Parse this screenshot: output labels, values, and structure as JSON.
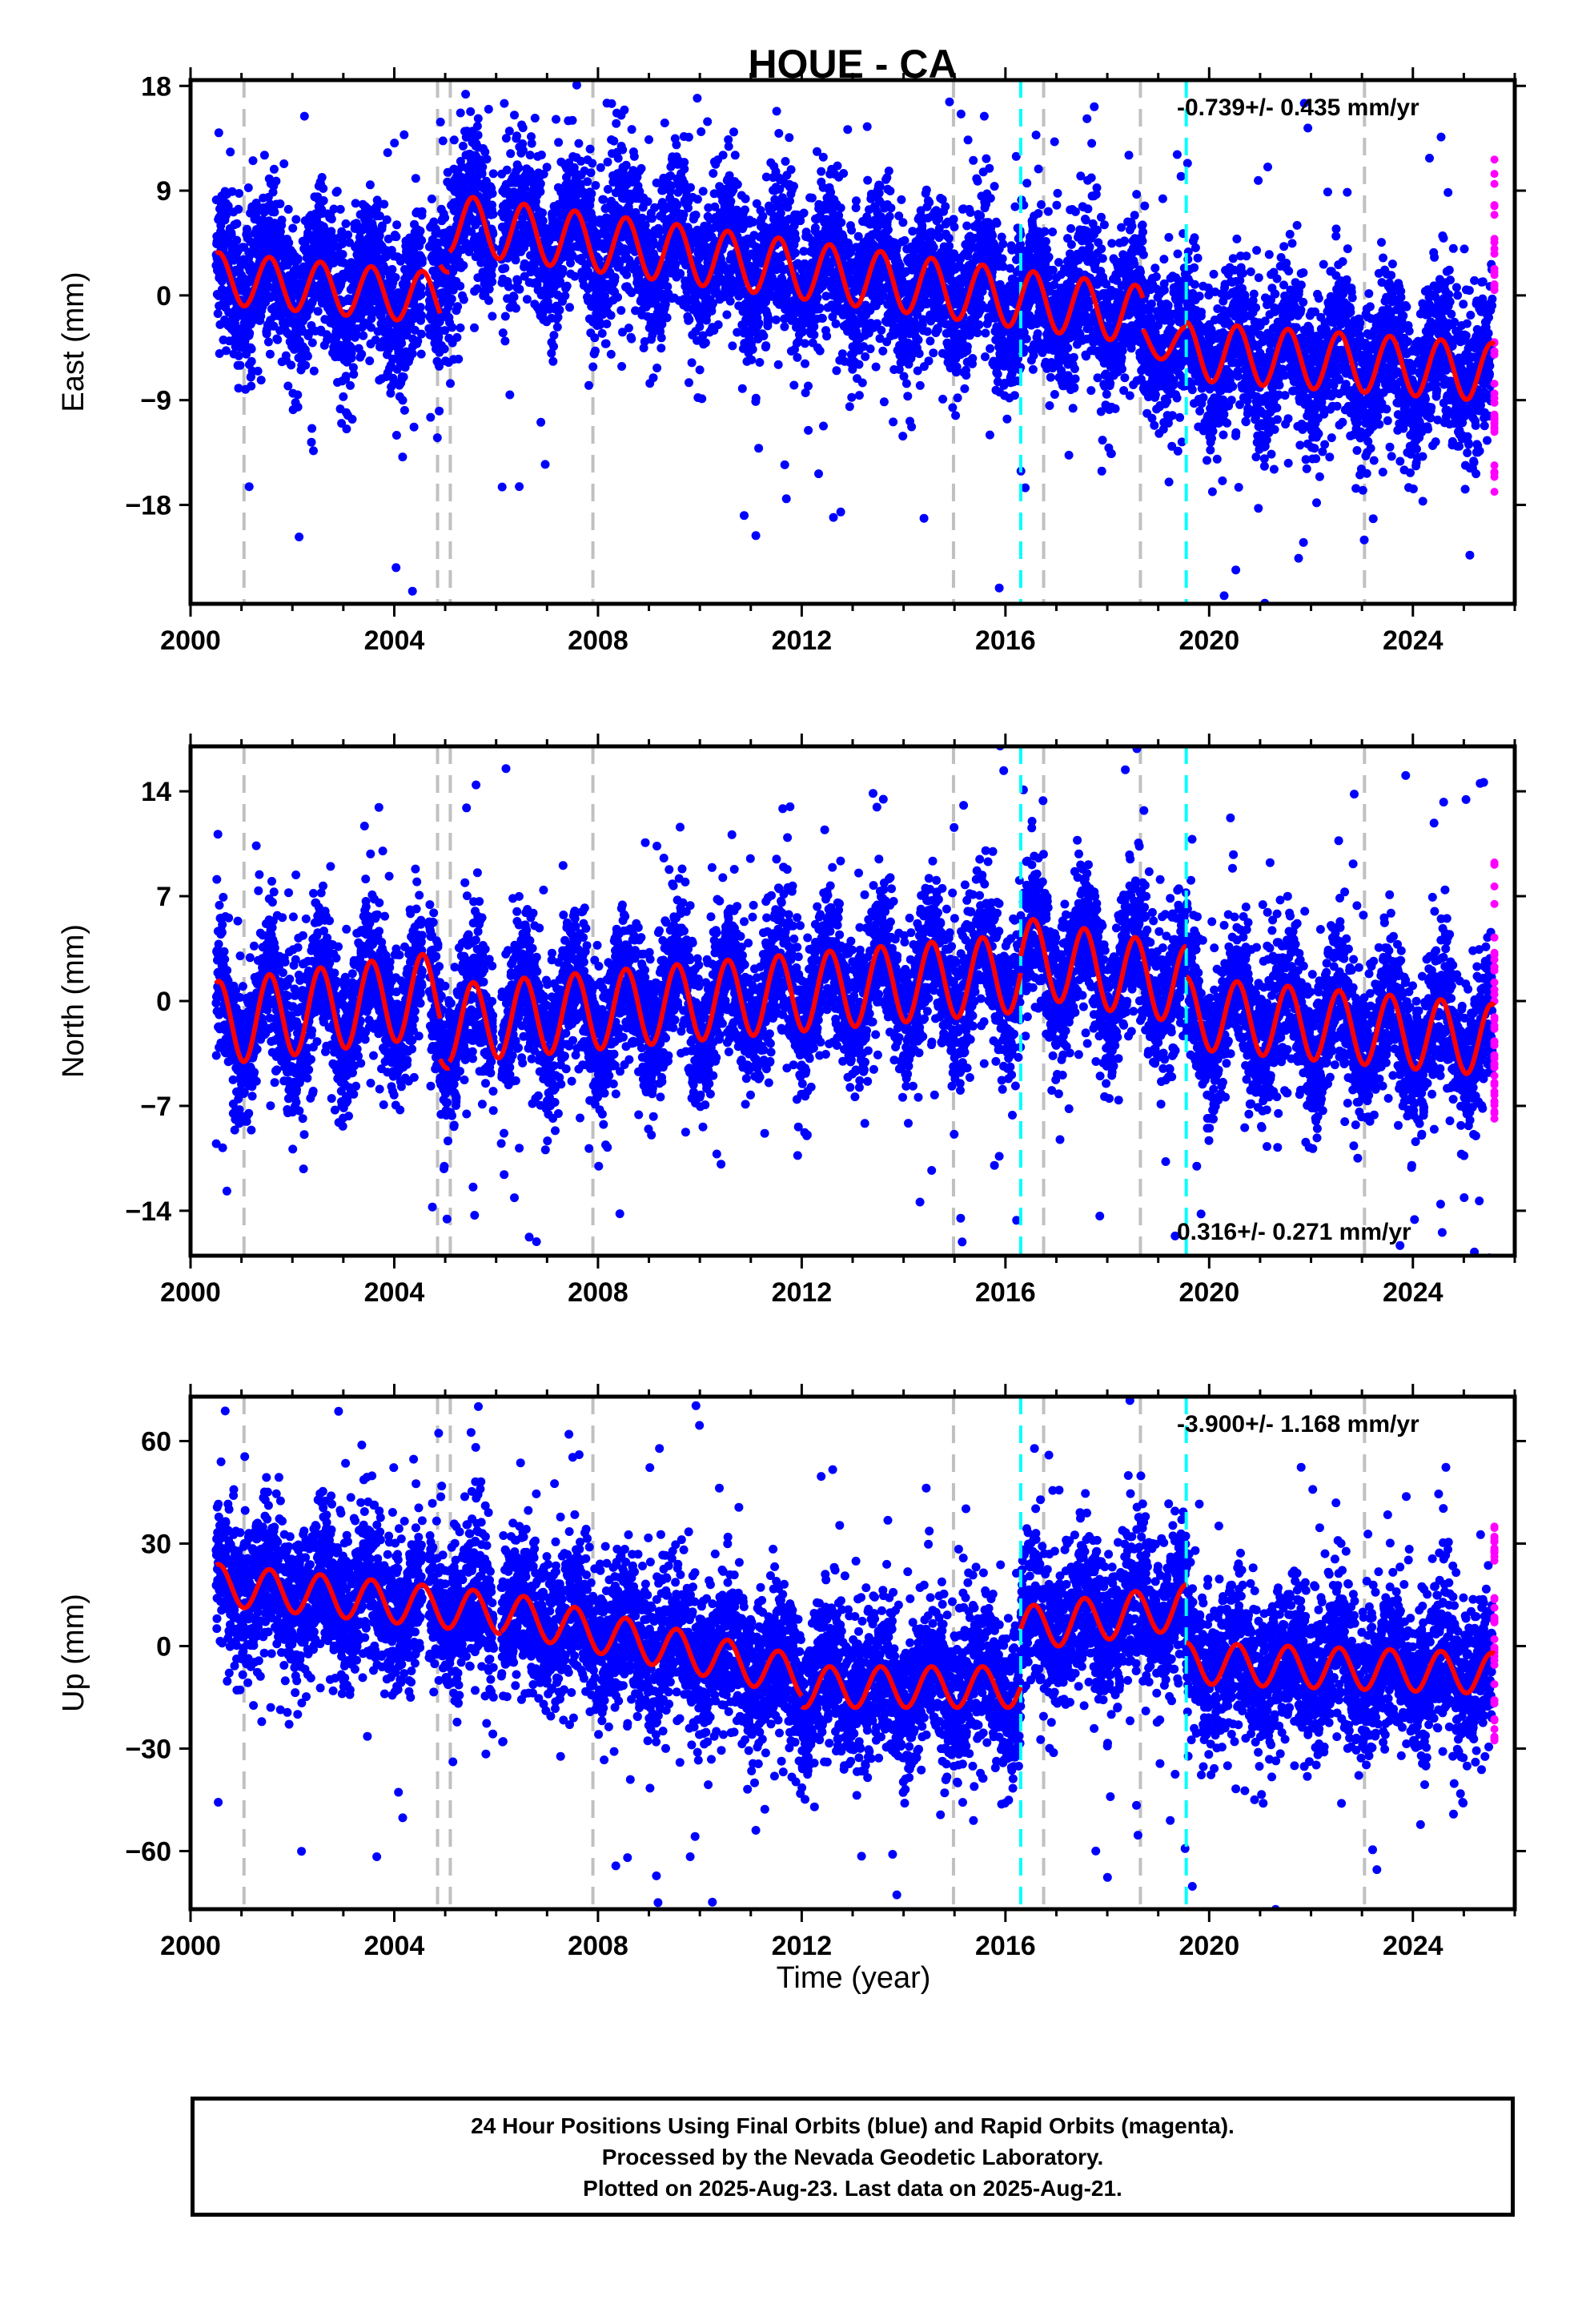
{
  "title": "HOUE - CA",
  "xlabel": "Time (year)",
  "footer": {
    "line1": "24 Hour Positions Using Final Orbits (blue) and Rapid Orbits (magenta).",
    "line2": "Processed by the Nevada Geodetic Laboratory.",
    "line3": "Plotted on 2025-Aug-23. Last data on 2025-Aug-21."
  },
  "colors": {
    "final": "#0000ff",
    "rapid": "#ff00ff",
    "model": "#ff0000",
    "equipment_change": "#c0c0c0",
    "earthquake": "#00ffff"
  },
  "chart_data": [
    {
      "type": "scatter",
      "component": "east",
      "ylabel": "East (mm)",
      "xlim": [
        2000.0,
        2026.0
      ],
      "ylim": [
        -26.5,
        18.5
      ],
      "xticks": [
        2000,
        2004,
        2008,
        2012,
        2016,
        2020,
        2024
      ],
      "yticks": [
        18,
        9,
        0,
        -9,
        -18
      ],
      "ytick_labels": [
        "18",
        "9",
        "0",
        "−9",
        "−18"
      ],
      "velocity_label": "-0.739+/- 0.435 mm/yr",
      "velocity_position": "top-right",
      "model_segments": [
        {
          "start": 2000.5,
          "end": 2004.9,
          "offset": 1.5,
          "slope": -0.4,
          "amp": 2.2
        },
        {
          "start": 2004.9,
          "end": 2005.08,
          "offset": 3.5,
          "slope": 0,
          "amp": 1.5
        },
        {
          "start": 2005.08,
          "end": 2018.7,
          "offset": 6.2,
          "slope": -0.58,
          "amp": 2.5
        },
        {
          "start": 2018.7,
          "end": 2019.55,
          "offset": -3.8,
          "slope": -0.5,
          "amp": 1.5
        },
        {
          "start": 2019.55,
          "end": 2025.6,
          "offset": -4.8,
          "slope": -0.3,
          "amp": 2.5
        }
      ],
      "point_density": {
        "spread": 3.3,
        "outlier_fraction": 0.05
      },
      "rapid_range": [
        -18,
        12
      ]
    },
    {
      "type": "scatter",
      "component": "north",
      "ylabel": "North (mm)",
      "xlim": [
        2000.0,
        2026.0
      ],
      "ylim": [
        -17,
        17
      ],
      "xticks": [
        2000,
        2004,
        2008,
        2012,
        2016,
        2020,
        2024
      ],
      "yticks": [
        14,
        7,
        0,
        -7,
        -14
      ],
      "ytick_labels": [
        "14",
        "7",
        "0",
        "−7",
        "−14"
      ],
      "velocity_label": "0.316+/- 0.271 mm/yr",
      "velocity_position": "bottom-right",
      "model_segments": [
        {
          "start": 2000.5,
          "end": 2004.9,
          "offset": -1.5,
          "slope": 0.45,
          "amp": 2.8
        },
        {
          "start": 2004.9,
          "end": 2005.08,
          "offset": -3.0,
          "slope": 0,
          "amp": 1.5
        },
        {
          "start": 2005.08,
          "end": 2016.3,
          "offset": -1.5,
          "slope": 0.3,
          "amp": 2.6
        },
        {
          "start": 2016.3,
          "end": 2019.55,
          "offset": 3.0,
          "slope": -0.6,
          "amp": 2.6
        },
        {
          "start": 2019.55,
          "end": 2025.6,
          "offset": -0.8,
          "slope": -0.3,
          "amp": 2.4
        }
      ],
      "point_density": {
        "spread": 2.4,
        "outlier_fraction": 0.05
      },
      "rapid_range": [
        -8,
        10.5
      ]
    },
    {
      "type": "scatter",
      "component": "up",
      "ylabel": "Up (mm)",
      "xlim": [
        2000.0,
        2026.0
      ],
      "ylim": [
        -77,
        73
      ],
      "xticks": [
        2000,
        2004,
        2008,
        2012,
        2016,
        2020,
        2024
      ],
      "yticks": [
        60,
        30,
        0,
        -30,
        -60
      ],
      "ytick_labels": [
        "60",
        "30",
        "0",
        "−30",
        "−60"
      ],
      "velocity_label": "-3.900+/- 1.168 mm/yr",
      "velocity_position": "top-right",
      "model_segments": [
        {
          "start": 2000.5,
          "end": 2006.1,
          "offset": 18.0,
          "slope": -1.5,
          "amp": 6.0
        },
        {
          "start": 2006.1,
          "end": 2012.0,
          "offset": 10.0,
          "slope": -3.2,
          "amp": 6.0
        },
        {
          "start": 2012.0,
          "end": 2016.3,
          "offset": -12.0,
          "slope": 0.0,
          "amp": 6.0
        },
        {
          "start": 2016.3,
          "end": 2019.55,
          "offset": 5.0,
          "slope": 2.0,
          "amp": 6.5
        },
        {
          "start": 2019.55,
          "end": 2025.6,
          "offset": -5.0,
          "slope": -0.5,
          "amp": 6.0
        }
      ],
      "point_density": {
        "spread": 11.0,
        "outlier_fraction": 0.05
      },
      "rapid_range": [
        -28,
        36
      ]
    }
  ],
  "equipment_changes": [
    2001.05,
    2004.85,
    2005.1,
    2007.9,
    2014.98,
    2016.75,
    2018.65,
    2023.05
  ],
  "earthquakes": [
    2016.3,
    2019.55
  ],
  "data_gaps": [
    [
      2004.55,
      2004.68
    ],
    [
      2005.95,
      2006.1
    ]
  ]
}
